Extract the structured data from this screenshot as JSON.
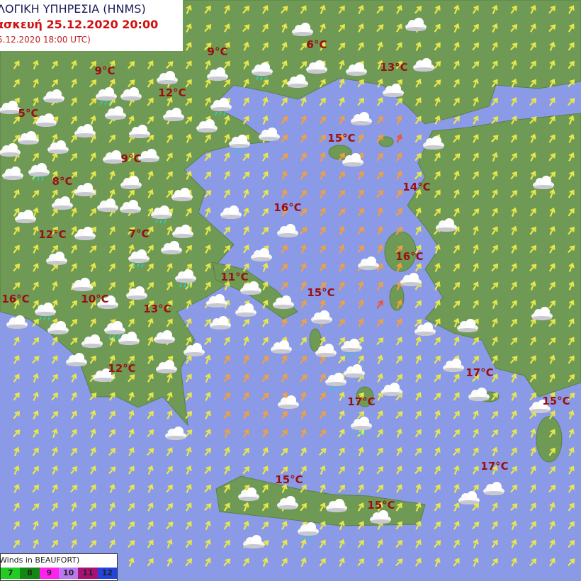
{
  "header": {
    "agency": "ΛΟΓΙΚΗ ΥΠΗΡΕΣΙΑ (HNMS)",
    "valid_time": "ασκευή 25.12.2020 20:00",
    "base_time": "5.12.2020 18:00 UTC)"
  },
  "temperatures": [
    "9°C",
    "6°C",
    "13°C",
    "9°C",
    "12°C",
    "5°C",
    "15°C",
    "9°C",
    "8°C",
    "14°C",
    "16°C",
    "12°C",
    "7°C",
    "16°C",
    "11°C",
    "15°C",
    "16°C",
    "10°C",
    "13°C",
    "12°C",
    "17°C",
    "17°C",
    "15°C",
    "17°C",
    "15°C",
    "15°C"
  ],
  "legend": {
    "title": "Winds in BEAUFORT)",
    "scale": [
      {
        "value": "7",
        "color": "#22cc22"
      },
      {
        "value": "8",
        "color": "#118811"
      },
      {
        "value": "9",
        "color": "#ff22ee"
      },
      {
        "value": "10",
        "color": "#bb77ee"
      },
      {
        "value": "11",
        "color": "#aa1177"
      },
      {
        "value": "12",
        "color": "#2244dd"
      }
    ]
  },
  "colors": {
    "sea": "#8a9ae6",
    "land": "#6f9a55",
    "wind_light": "#e8e84a",
    "wind_moderate": "#f0a040",
    "wind_strong": "#ee5533",
    "temperature": "#9a1010"
  },
  "icons": [
    "wind-arrow-icon",
    "cloud-icon",
    "partly-cloudy-night-icon",
    "rain-cloud-icon"
  ]
}
